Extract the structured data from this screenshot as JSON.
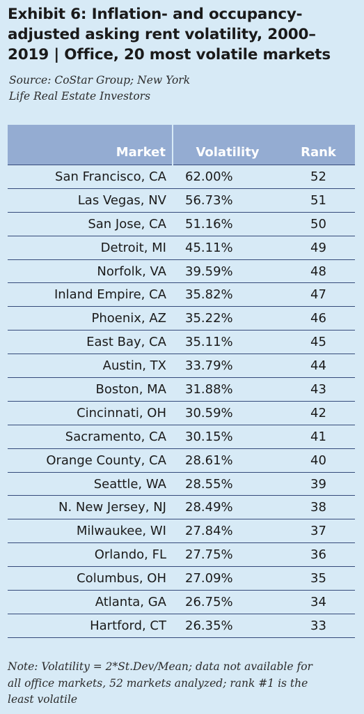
{
  "title": {
    "line1": "Exhibit 6: Inflation- and occupancy-",
    "line2": "adjusted asking rent volatility, 2000–",
    "line3": "2019 | Office, 20 most volatile markets"
  },
  "source": {
    "line1": "Source: CoStar Group; New York",
    "line2": "Life Real Estate Investors"
  },
  "table": {
    "headers": [
      "Market",
      "Volatility",
      "Rank"
    ],
    "rows": [
      [
        "San Francisco, CA",
        "62.00%",
        "52"
      ],
      [
        "Las Vegas, NV",
        "56.73%",
        "51"
      ],
      [
        "San Jose, CA",
        "51.16%",
        "50"
      ],
      [
        "Detroit, MI",
        "45.11%",
        "49"
      ],
      [
        "Norfolk, VA",
        "39.59%",
        "48"
      ],
      [
        "Inland Empire, CA",
        "35.82%",
        "47"
      ],
      [
        "Phoenix, AZ",
        "35.22%",
        "46"
      ],
      [
        "East Bay, CA",
        "35.11%",
        "45"
      ],
      [
        "Austin, TX",
        "33.79%",
        "44"
      ],
      [
        "Boston, MA",
        "31.88%",
        "43"
      ],
      [
        "Cincinnati, OH",
        "30.59%",
        "42"
      ],
      [
        "Sacramento, CA",
        "30.15%",
        "41"
      ],
      [
        "Orange County, CA",
        "28.61%",
        "40"
      ],
      [
        "Seattle, WA",
        "28.55%",
        "39"
      ],
      [
        "N. New Jersey, NJ",
        "28.49%",
        "38"
      ],
      [
        "Milwaukee, WI",
        "27.84%",
        "37"
      ],
      [
        "Orlando, FL",
        "27.75%",
        "36"
      ],
      [
        "Columbus, OH",
        "27.09%",
        "35"
      ],
      [
        "Atlanta, GA",
        "26.75%",
        "34"
      ],
      [
        "Hartford, CT",
        "26.35%",
        "33"
      ]
    ]
  },
  "note": {
    "line1": "Note: Volatility = 2*St.Dev/Mean; data not available for",
    "line2": "all office markets, 52 markets analyzed; rank #1 is the",
    "line3": "least volatile"
  },
  "colors": {
    "background": "#d7eaf6",
    "header_fill": "#94acd2",
    "rule": "#344a7a"
  }
}
